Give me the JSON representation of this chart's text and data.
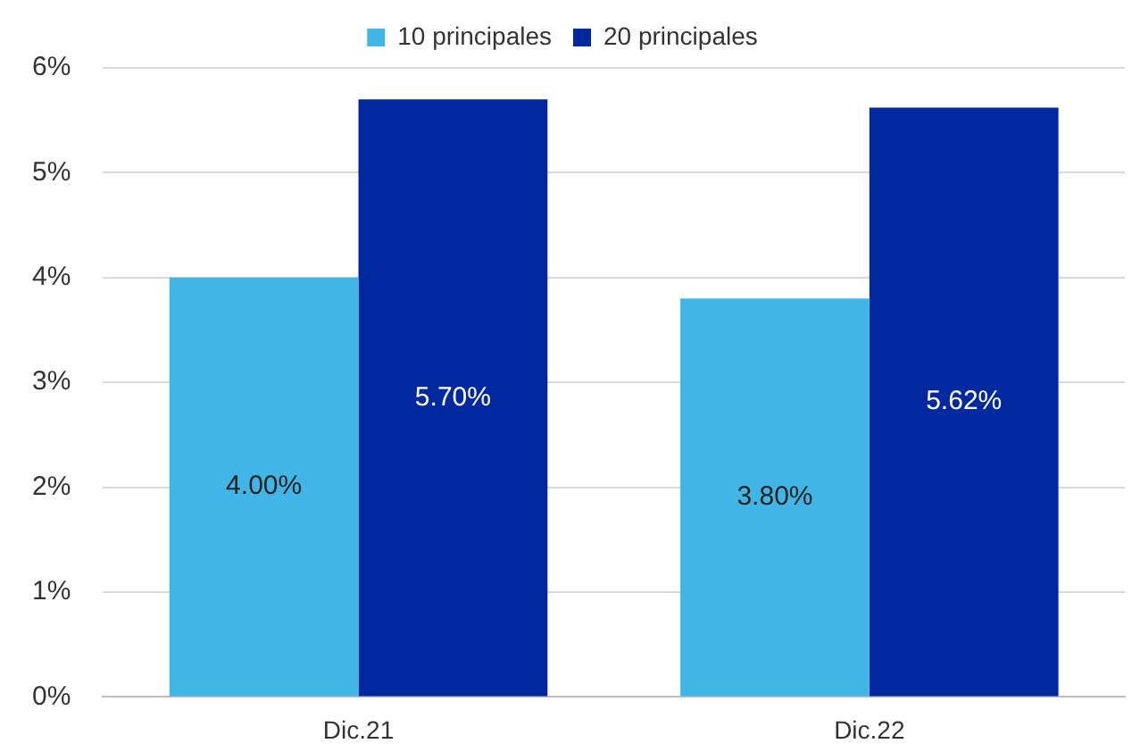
{
  "chart_data": {
    "type": "bar",
    "categories": [
      "Dic.21",
      "Dic.22"
    ],
    "series": [
      {
        "name": "10 principales",
        "color": "#41b6e6",
        "values": [
          4.0,
          3.8
        ],
        "value_labels": [
          "4.00%",
          "3.80%"
        ]
      },
      {
        "name": "20 principales",
        "color": "#0029a0",
        "values": [
          5.7,
          5.62
        ],
        "value_labels": [
          "5.70%",
          "5.62%"
        ]
      }
    ],
    "ylim": [
      0,
      6
    ],
    "yticks": [
      {
        "value": 0,
        "label": "0%"
      },
      {
        "value": 1,
        "label": "1%"
      },
      {
        "value": 2,
        "label": "2%"
      },
      {
        "value": 3,
        "label": "3%"
      },
      {
        "value": 4,
        "label": "4%"
      },
      {
        "value": 5,
        "label": "5%"
      },
      {
        "value": 6,
        "label": "6%"
      }
    ],
    "grid": "y",
    "legend": "top"
  }
}
